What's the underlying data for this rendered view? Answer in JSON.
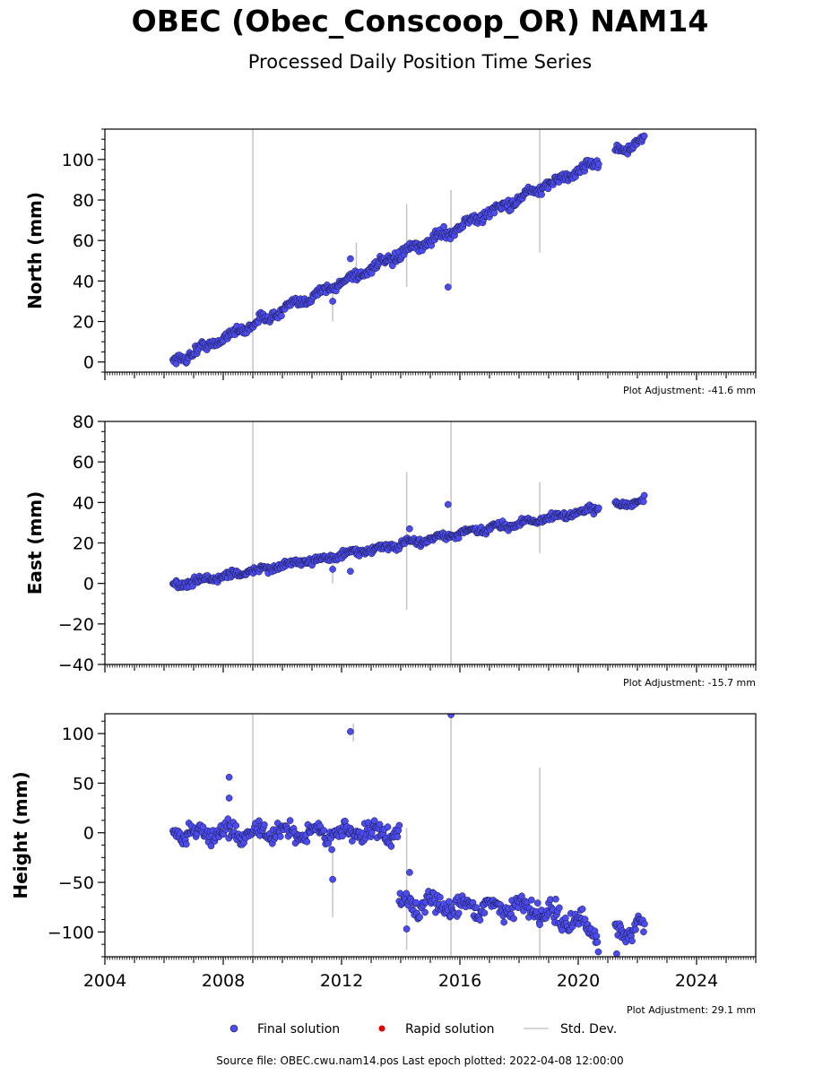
{
  "title": "OBEC (Obec_Conscoop_OR) NAM14",
  "subtitle": "Processed Daily Position Time Series",
  "colors": {
    "final": "#4b4bef",
    "final_edge": "#1a1a40",
    "rapid": "#e00000",
    "stddev": "#c8c8c8"
  },
  "x_axis": {
    "range": [
      2004,
      2026
    ],
    "ticks": [
      2004,
      2008,
      2012,
      2016,
      2020,
      2024
    ],
    "tick_labels": [
      "2004",
      "2008",
      "2012",
      "2016",
      "2020",
      "2024"
    ]
  },
  "legend": {
    "final": "Final solution",
    "rapid": "Rapid solution",
    "stddev": "Std. Dev."
  },
  "source": "Source file: OBEC.cwu.nam14.pos  Last epoch plotted: 2022-04-08 12:00:00",
  "chart_data": [
    {
      "type": "scatter",
      "ylabel": "North (mm)",
      "ylim": [
        -5,
        115
      ],
      "yticks": [
        0,
        20,
        40,
        60,
        80,
        100
      ],
      "ytick_labels": [
        "0",
        "20",
        "40",
        "60",
        "80",
        "100"
      ],
      "adjustment": "Plot Adjustment: -41.6 mm",
      "trend": {
        "start": [
          2006.3,
          0
        ],
        "end": [
          2022.25,
          110
        ],
        "noise": 2.2
      },
      "gaps": [
        [
          2020.7,
          2021.25
        ]
      ],
      "outliers": [
        [
          2011.7,
          30
        ],
        [
          2012.3,
          51
        ],
        [
          2015.6,
          37
        ]
      ],
      "error_bars": [
        [
          2009.0,
          -5,
          115
        ],
        [
          2014.2,
          37,
          78
        ],
        [
          2015.7,
          37,
          85
        ],
        [
          2018.7,
          54,
          115
        ],
        [
          2011.7,
          20,
          37
        ],
        [
          2012.5,
          44,
          59
        ]
      ]
    },
    {
      "type": "scatter",
      "ylabel": "East (mm)",
      "ylim": [
        -40,
        80
      ],
      "yticks": [
        -40,
        -20,
        0,
        20,
        40,
        60,
        80
      ],
      "ytick_labels": [
        "−40",
        "−20",
        "0",
        "20",
        "40",
        "60",
        "80"
      ],
      "adjustment": "Plot Adjustment: -15.7 mm",
      "trend": {
        "start": [
          2006.3,
          -1
        ],
        "end": [
          2022.25,
          41
        ],
        "noise": 1.6
      },
      "gaps": [
        [
          2020.7,
          2021.25
        ]
      ],
      "outliers": [
        [
          2011.7,
          7
        ],
        [
          2012.3,
          6
        ],
        [
          2014.3,
          27
        ],
        [
          2015.6,
          39
        ]
      ],
      "error_bars": [
        [
          2009.0,
          -40,
          80
        ],
        [
          2014.2,
          -13,
          55
        ],
        [
          2015.7,
          -40,
          80
        ],
        [
          2018.7,
          15,
          50
        ],
        [
          2011.7,
          0,
          12
        ]
      ]
    },
    {
      "type": "scatter",
      "ylabel": "Height (mm)",
      "ylim": [
        -125,
        120
      ],
      "yticks": [
        -100,
        -50,
        0,
        50,
        100
      ],
      "ytick_labels": [
        "−100",
        "−50",
        "0",
        "50",
        "100"
      ],
      "adjustment": "Plot Adjustment: 29.1 mm",
      "segments": [
        {
          "x0": 2006.3,
          "x1": 2013.95,
          "y0": 0,
          "y1": 0,
          "noise": 7
        },
        {
          "x0": 2013.95,
          "x1": 2018.7,
          "y0": -72,
          "y1": -76,
          "noise": 8
        },
        {
          "x0": 2018.7,
          "x1": 2020.7,
          "y0": -78,
          "y1": -100,
          "noise": 9
        },
        {
          "x0": 2021.25,
          "x1": 2022.25,
          "y0": -98,
          "y1": -95,
          "noise": 9
        }
      ],
      "outliers": [
        [
          2008.2,
          56
        ],
        [
          2008.2,
          35
        ],
        [
          2011.7,
          -47
        ],
        [
          2012.3,
          102
        ],
        [
          2014.3,
          -40
        ],
        [
          2014.2,
          -97
        ],
        [
          2015.7,
          119
        ],
        [
          2021.3,
          -122
        ]
      ],
      "error_bars": [
        [
          2009.0,
          -125,
          120
        ],
        [
          2014.2,
          -118,
          5
        ],
        [
          2015.7,
          -125,
          120
        ],
        [
          2018.7,
          -125,
          66
        ],
        [
          2011.7,
          -85,
          -20
        ],
        [
          2012.4,
          92,
          110
        ]
      ]
    }
  ]
}
